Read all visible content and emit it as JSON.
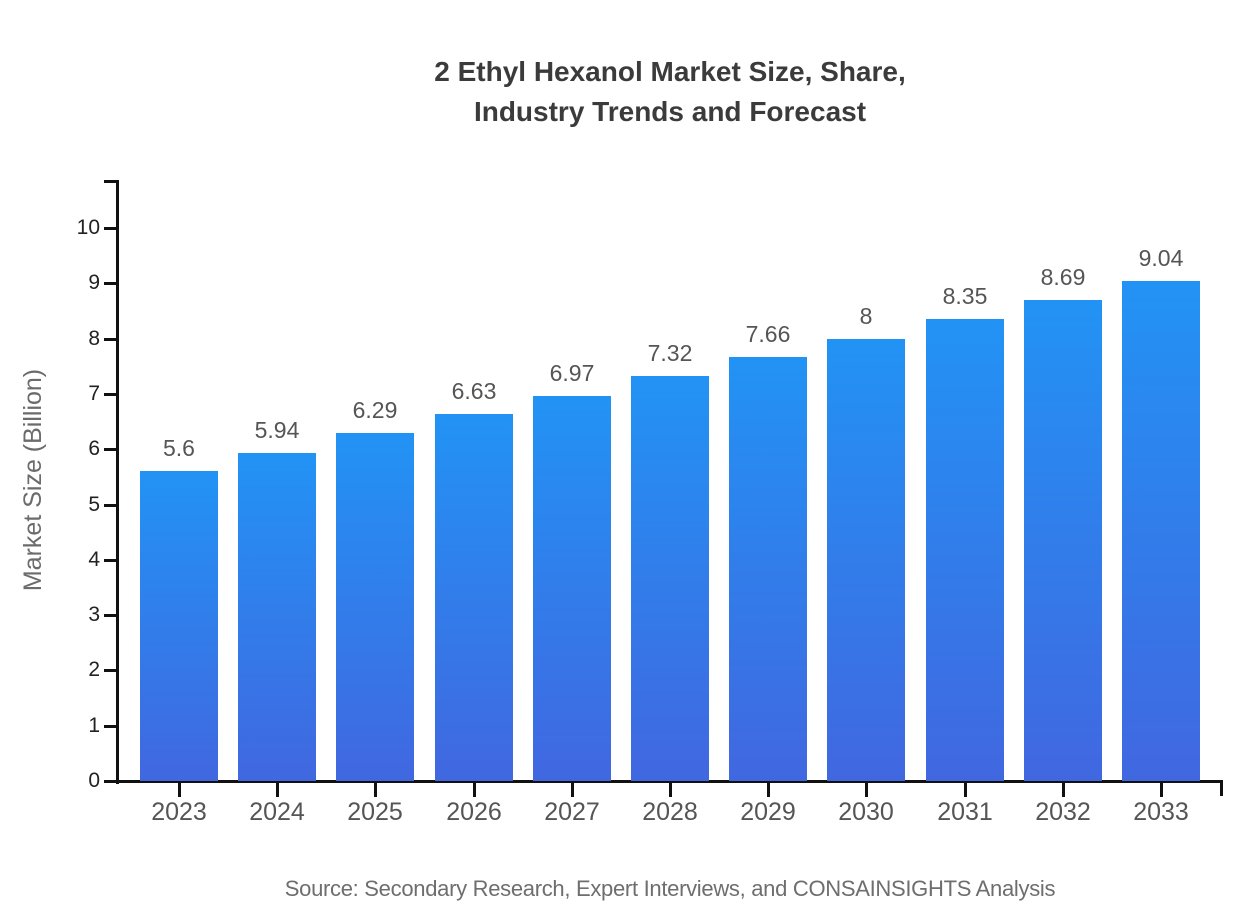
{
  "title": {
    "line1": "2 Ethyl Hexanol Market Size, Share,",
    "line2": "Industry Trends and Forecast"
  },
  "source_note": "Source: Secondary Research, Expert Interviews, and CONSAINSIGHTS Analysis",
  "chart_data": {
    "type": "bar",
    "title": "2 Ethyl Hexanol Market Size, Share, Industry Trends and Forecast",
    "xlabel": "",
    "ylabel": "Market Size (Billion)",
    "categories": [
      "2023",
      "2024",
      "2025",
      "2026",
      "2027",
      "2028",
      "2029",
      "2030",
      "2031",
      "2032",
      "2033"
    ],
    "values": [
      5.6,
      5.94,
      6.29,
      6.63,
      6.97,
      7.32,
      7.66,
      8,
      8.35,
      8.69,
      9.04
    ],
    "value_labels": [
      "5.6",
      "5.94",
      "6.29",
      "6.63",
      "6.97",
      "7.32",
      "7.66",
      "8",
      "8.35",
      "8.69",
      "9.04"
    ],
    "ylim": [
      0,
      10
    ],
    "yticks": [
      0,
      1,
      2,
      3,
      4,
      5,
      6,
      7,
      8,
      9,
      10
    ],
    "grid": false,
    "legend": false,
    "colors": {
      "bar_gradient_top": "#2293f5",
      "bar_gradient_bottom": "#4167e0",
      "axis": "#111111",
      "tick_label": "#222222",
      "category_label": "#555555",
      "value_label": "#555555",
      "title_text": "#3b3b3b",
      "source_text": "#6e6e6e"
    }
  }
}
